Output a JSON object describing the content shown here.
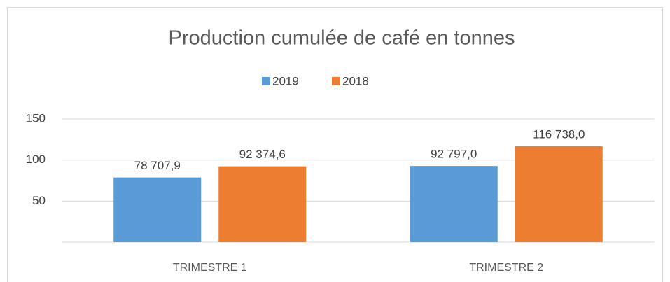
{
  "chart_data": {
    "type": "bar",
    "title": "Production cumulée de café en tonnes",
    "categories": [
      "TRIMESTRE 1",
      "TRIMESTRE 2"
    ],
    "series": [
      {
        "name": "2019",
        "color": "#5b9bd5",
        "values": [
          78.7079,
          92.797
        ],
        "value_labels": [
          "78 707,9",
          "92 797,0"
        ]
      },
      {
        "name": "2018",
        "color": "#ed7d31",
        "values": [
          92.3746,
          116.738
        ],
        "value_labels": [
          "92 374,6",
          "116 738,0"
        ]
      }
    ],
    "ylim": [
      0,
      150
    ],
    "yticks": [
      50,
      100,
      150
    ],
    "grid": true,
    "legend": "top"
  }
}
